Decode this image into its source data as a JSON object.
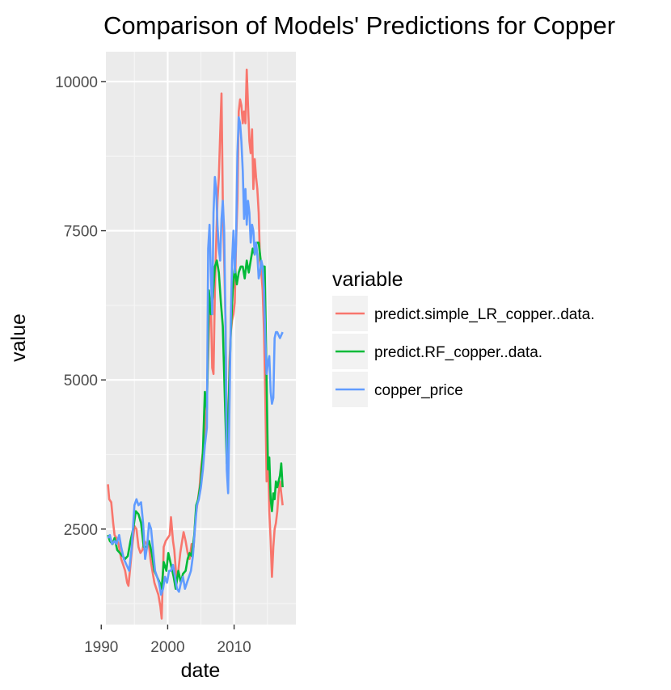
{
  "chart_data": {
    "type": "line",
    "title": "Comparison of Models' Predictions for Copper",
    "xlabel": "date",
    "ylabel": "value",
    "xlim": [
      1990.7,
      2019.3
    ],
    "ylim": [
      900,
      10500
    ],
    "x_ticks": [
      1990,
      2000,
      2010
    ],
    "y_ticks": [
      2500,
      5000,
      7500,
      10000
    ],
    "x_minor_ticks": [
      1995,
      2005,
      2015
    ],
    "y_minor_ticks": [
      1250,
      3750,
      6250,
      8750
    ],
    "grid": true,
    "legend": {
      "title": "variable",
      "position": "right"
    },
    "series": [
      {
        "name": "predict.simple_LR_copper..data.",
        "color": "#F8766D",
        "x": [
          1991.0,
          1991.2,
          1991.5,
          1991.8,
          1992.0,
          1992.3,
          1992.6,
          1993.0,
          1993.3,
          1993.6,
          1993.9,
          1994.1,
          1994.4,
          1994.7,
          1995.0,
          1995.3,
          1995.6,
          1995.9,
          1996.2,
          1996.5,
          1996.8,
          1997.1,
          1997.4,
          1997.7,
          1998.0,
          1998.3,
          1998.6,
          1998.9,
          1999.1,
          1999.4,
          1999.7,
          2000.0,
          2000.3,
          2000.5,
          2000.8,
          2001.0,
          2001.3,
          2001.6,
          2001.9,
          2002.1,
          2002.4,
          2002.7,
          2003.0,
          2003.3,
          2003.6,
          2003.9,
          2004.2,
          2004.5,
          2004.8,
          2005.0,
          2005.3,
          2005.6,
          2005.9,
          2006.1,
          2006.3,
          2006.5,
          2006.7,
          2006.9,
          2007.1,
          2007.3,
          2007.5,
          2007.7,
          2007.9,
          2008.1,
          2008.3,
          2008.5,
          2008.7,
          2008.9,
          2009.1,
          2009.3,
          2009.5,
          2009.7,
          2009.9,
          2010.1,
          2010.3,
          2010.5,
          2010.7,
          2010.9,
          2011.1,
          2011.3,
          2011.5,
          2011.7,
          2011.9,
          2012.1,
          2012.3,
          2012.5,
          2012.7,
          2012.9,
          2013.1,
          2013.3,
          2013.5,
          2013.7,
          2013.9,
          2014.1,
          2014.3,
          2014.5,
          2014.7,
          2014.9,
          2015.1,
          2015.3,
          2015.5,
          2015.7,
          2015.9,
          2016.1,
          2016.3,
          2016.5,
          2016.7,
          2016.9,
          2017.1,
          2017.3
        ],
        "values": [
          3250,
          3000,
          2950,
          2600,
          2400,
          2350,
          2250,
          2000,
          1900,
          1800,
          1600,
          1550,
          1900,
          2250,
          2550,
          2500,
          2200,
          2100,
          2150,
          2300,
          2250,
          2300,
          2000,
          1800,
          1600,
          1500,
          1400,
          1200,
          1000,
          2200,
          2300,
          2350,
          2400,
          2700,
          2300,
          2150,
          1700,
          1800,
          2100,
          2250,
          2450,
          2300,
          2100,
          2000,
          2250,
          2200,
          2700,
          2950,
          3200,
          3500,
          3800,
          4200,
          4700,
          5400,
          6200,
          6300,
          5200,
          5100,
          6500,
          7300,
          8000,
          8400,
          9100,
          9800,
          8000,
          7000,
          6000,
          4000,
          3500,
          5300,
          5800,
          6000,
          6100,
          6300,
          7300,
          8000,
          9500,
          9700,
          9600,
          9300,
          9500,
          9300,
          10200,
          9600,
          9000,
          8800,
          9200,
          8200,
          8700,
          8400,
          8200,
          7800,
          7000,
          6800,
          6500,
          5800,
          4700,
          3300,
          3700,
          2800,
          2300,
          1700,
          2200,
          2500,
          2600,
          2800,
          3100,
          3300,
          3100,
          2900
        ]
      },
      {
        "name": "predict.RF_copper..data.",
        "color": "#00BA38",
        "x": [
          1991.0,
          1991.3,
          1991.7,
          1992.0,
          1992.4,
          1992.8,
          1993.2,
          1993.6,
          1994.0,
          1994.4,
          1994.8,
          1995.2,
          1995.6,
          1996.0,
          1996.4,
          1996.8,
          1997.2,
          1997.6,
          1998.0,
          1998.4,
          1998.8,
          1999.1,
          1999.4,
          1999.8,
          2000.1,
          2000.5,
          2000.9,
          2001.2,
          2001.6,
          2002.0,
          2002.3,
          2002.7,
          2003.0,
          2003.3,
          2003.6,
          2004.0,
          2004.3,
          2004.6,
          2005.0,
          2005.3,
          2005.6,
          2005.9,
          2006.2,
          2006.5,
          2006.8,
          2007.1,
          2007.4,
          2007.7,
          2008.0,
          2008.3,
          2008.6,
          2008.9,
          2009.2,
          2009.5,
          2009.8,
          2010.1,
          2010.4,
          2010.7,
          2011.0,
          2011.3,
          2011.6,
          2011.9,
          2012.2,
          2012.5,
          2012.8,
          2013.1,
          2013.4,
          2013.7,
          2014.0,
          2014.3,
          2014.6,
          2014.9,
          2015.1,
          2015.3,
          2015.5,
          2015.7,
          2015.9,
          2016.1,
          2016.3,
          2016.5,
          2016.7,
          2016.9,
          2017.1,
          2017.3
        ],
        "values": [
          2400,
          2300,
          2250,
          2350,
          2150,
          2100,
          2050,
          2000,
          2050,
          2300,
          2500,
          2800,
          2750,
          2600,
          2200,
          2200,
          2300,
          2100,
          1800,
          1700,
          1600,
          1500,
          1950,
          1800,
          2100,
          1900,
          1700,
          1500,
          1800,
          1600,
          1750,
          1800,
          2000,
          2100,
          2050,
          2400,
          2900,
          3000,
          3300,
          3800,
          4800,
          4500,
          6500,
          6100,
          6400,
          6900,
          7000,
          6800,
          6300,
          5900,
          4700,
          3600,
          4700,
          5800,
          6500,
          6900,
          6600,
          6800,
          6900,
          6900,
          6700,
          7000,
          6800,
          7000,
          7200,
          7100,
          7300,
          7300,
          7000,
          6900,
          6900,
          5000,
          3500,
          3700,
          3000,
          2800,
          3100,
          3000,
          3300,
          3200,
          3300,
          3400,
          3600,
          3200
        ]
      },
      {
        "name": "copper_price",
        "color": "#619CFF",
        "x": [
          1991.0,
          1991.3,
          1991.6,
          1992.0,
          1992.3,
          1992.7,
          1993.0,
          1993.4,
          1993.8,
          1994.2,
          1994.6,
          1995.0,
          1995.3,
          1995.6,
          1996.0,
          1996.3,
          1996.6,
          1996.9,
          1997.2,
          1997.5,
          1997.8,
          1998.1,
          1998.4,
          1998.7,
          1999.0,
          1999.3,
          1999.6,
          1999.9,
          2000.2,
          2000.5,
          2000.8,
          2001.1,
          2001.4,
          2001.7,
          2002.0,
          2002.3,
          2002.6,
          2002.9,
          2003.2,
          2003.5,
          2003.8,
          2004.1,
          2004.4,
          2004.7,
          2005.0,
          2005.3,
          2005.6,
          2005.9,
          2006.1,
          2006.3,
          2006.5,
          2006.7,
          2006.9,
          2007.1,
          2007.3,
          2007.5,
          2007.7,
          2007.9,
          2008.1,
          2008.3,
          2008.5,
          2008.7,
          2008.9,
          2009.1,
          2009.3,
          2009.5,
          2009.7,
          2009.9,
          2010.1,
          2010.3,
          2010.5,
          2010.7,
          2010.9,
          2011.1,
          2011.3,
          2011.5,
          2011.7,
          2011.9,
          2012.1,
          2012.3,
          2012.5,
          2012.7,
          2012.9,
          2013.1,
          2013.3,
          2013.5,
          2013.7,
          2013.9,
          2014.1,
          2014.3,
          2014.5,
          2014.7,
          2014.9,
          2015.1,
          2015.3,
          2015.5,
          2015.7,
          2015.9,
          2016.1,
          2016.3,
          2016.5,
          2016.7,
          2016.9,
          2017.1,
          2017.3
        ],
        "values": [
          2350,
          2400,
          2250,
          2300,
          2250,
          2400,
          2200,
          2000,
          1900,
          1800,
          2200,
          2900,
          3000,
          2900,
          2950,
          2600,
          2000,
          2200,
          2600,
          2500,
          2150,
          1800,
          1700,
          1600,
          1400,
          1500,
          1700,
          1600,
          1800,
          1800,
          1900,
          1700,
          1500,
          1450,
          1600,
          1700,
          1500,
          1600,
          1700,
          1800,
          2050,
          2500,
          2900,
          3000,
          3200,
          3500,
          3900,
          4200,
          7200,
          7600,
          6800,
          6100,
          7800,
          8400,
          8200,
          7600,
          7200,
          7000,
          7700,
          8000,
          7500,
          6000,
          3500,
          3100,
          4500,
          6000,
          7000,
          7500,
          6800,
          7300,
          8800,
          9400,
          9300,
          9000,
          8500,
          7700,
          8200,
          7600,
          8000,
          7800,
          7300,
          7600,
          7500,
          7100,
          7300,
          7100,
          6700,
          6800,
          7000,
          6900,
          6500,
          5700,
          5100,
          5300,
          5400,
          4800,
          4600,
          4700,
          5700,
          5800,
          5800,
          5750,
          5700,
          5750,
          5800
        ]
      }
    ]
  }
}
